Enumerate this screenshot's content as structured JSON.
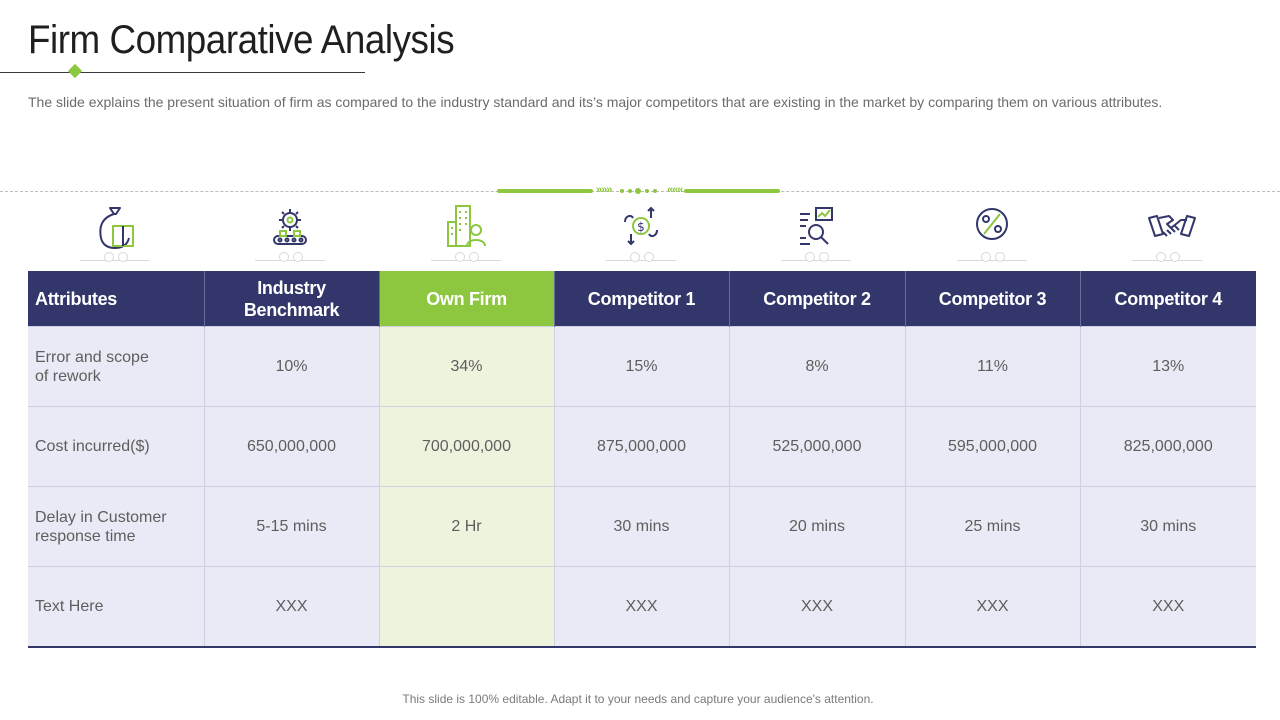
{
  "title": "Firm Comparative Analysis",
  "subtitle": "The slide explains the present situation of firm as compared to the industry standard and its’s major competitors that are existing in the market by comparing them on various attributes.",
  "divider": {
    "arrows_left": "»»»",
    "arrows_right": "«««"
  },
  "icons": [
    "money-bag-icon",
    "gear-conveyor-icon",
    "building-businessman-icon",
    "dollar-exchange-icon",
    "analytics-magnifier-icon",
    "percent-tag-icon",
    "handshake-icon"
  ],
  "table": {
    "headers": [
      "Attributes",
      "Industry Benchmark",
      "Own Firm",
      "Competitor 1",
      "Competitor 2",
      "Competitor 3",
      "Competitor 4"
    ],
    "rows": [
      [
        "Error and scope of rework",
        "10%",
        "34%",
        "15%",
        "8%",
        "11%",
        "13%"
      ],
      [
        "Cost incurred($)",
        "650,000,000",
        "700,000,000",
        "875,000,000",
        "525,000,000",
        "595,000,000",
        "825,000,000"
      ],
      [
        "Delay in Customer response time",
        "5-15 mins",
        "2 Hr",
        "30 mins",
        "20 mins",
        "25 mins",
        "30 mins"
      ],
      [
        "Text Here",
        "XXX",
        "",
        "XXX",
        "XXX",
        "XXX",
        "XXX"
      ]
    ]
  },
  "colors": {
    "header_navy": "#33366b",
    "accent_green": "#8dc63f",
    "cell_lavender": "#e9eaf5",
    "cell_green": "#eef3de"
  },
  "footer": "This slide is 100% editable. Adapt it to your needs and capture your audience's attention."
}
